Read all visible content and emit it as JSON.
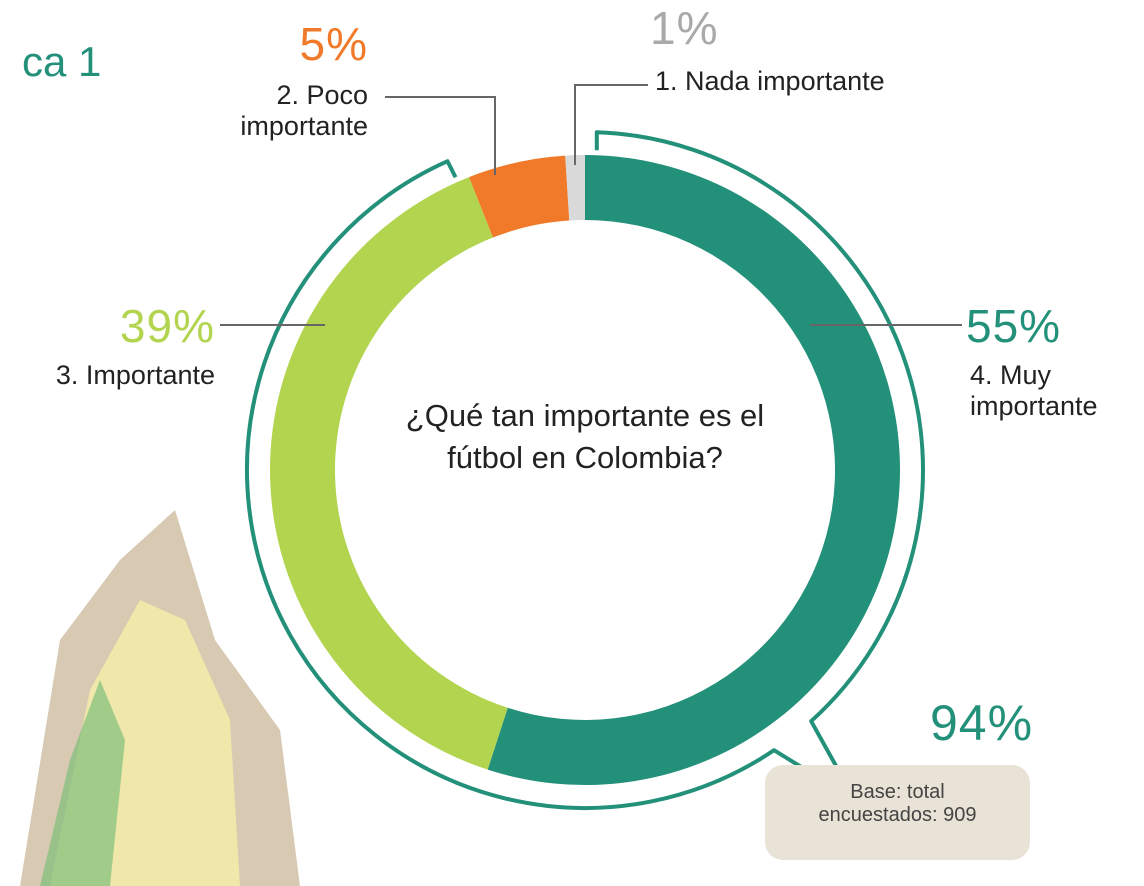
{
  "chart_data": {
    "type": "donut",
    "title": "ca 1",
    "center_text": "¿Qué tan importante es el fútbol en Colombia?",
    "categories": [
      "4. Muy importante",
      "3. Importante",
      "2. Poco importante",
      "1. Nada importante"
    ],
    "values": [
      55,
      39,
      5,
      1
    ],
    "value_labels": [
      "55%",
      "39%",
      "5%",
      "1%"
    ],
    "colors": [
      "#23907a",
      "#b2d44f",
      "#f07a2a",
      "#d9d9d9"
    ],
    "label_colors": [
      "#23907a",
      "#b2d44f",
      "#f07a2a",
      "#a9a9a9"
    ],
    "annotations": [
      "94%",
      "Base: total encuestados: 909"
    ]
  }
}
